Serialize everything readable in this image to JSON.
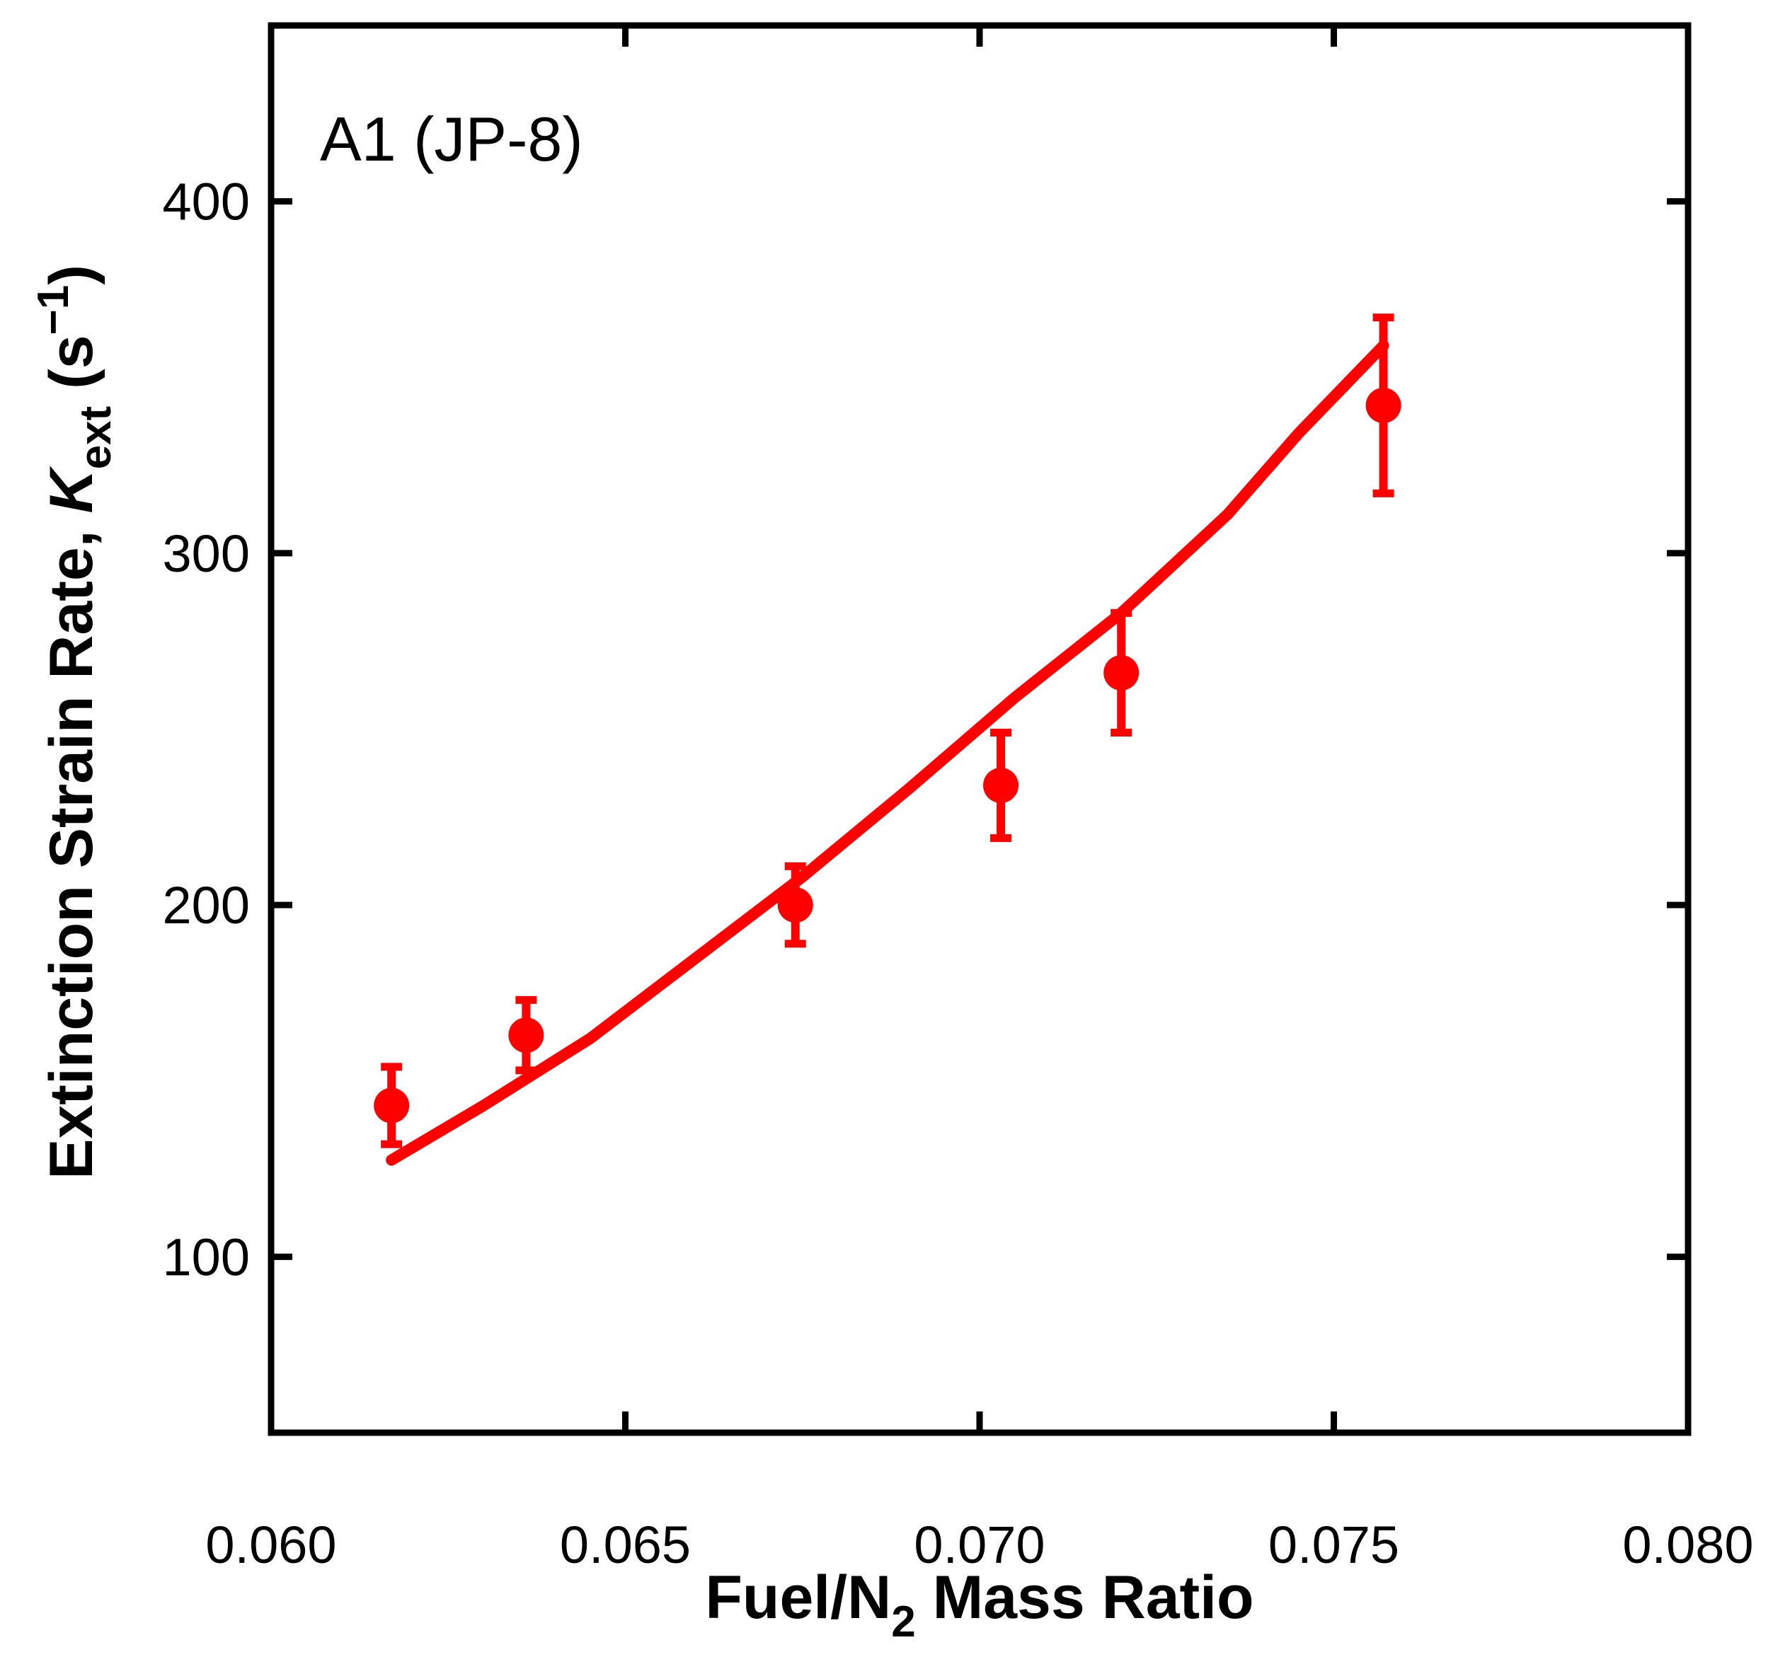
{
  "chart_data": {
    "type": "scatter",
    "annotation": "A1 (JP-8)",
    "xlabel_parts": {
      "prefix": "Fuel/N",
      "sub": "2",
      "suffix": " Mass Ratio"
    },
    "ylabel_parts": {
      "prefix": "Extinction Strain Rate, ",
      "symbol_italic": "K",
      "symbol_sub": "ext",
      "mid": " (s",
      "sup": "−1",
      "suffix": ")"
    },
    "xlim": [
      0.06,
      0.08
    ],
    "ylim": [
      50,
      450
    ],
    "xticks": [
      0.06,
      0.065,
      0.07,
      0.075,
      0.08
    ],
    "xticklabels": [
      "0.060",
      "0.065",
      "0.070",
      "0.075",
      "0.080"
    ],
    "yticks": [
      100,
      200,
      300,
      400
    ],
    "yticklabels": [
      "100",
      "200",
      "300",
      "400"
    ],
    "grid": false,
    "legend": null,
    "axis_color": "#000000",
    "background_color": "#ffffff",
    "series": [
      {
        "name": "experimental-data",
        "type": "scatter-errorbar",
        "color": "#ff0000",
        "marker": "circle",
        "points": [
          {
            "x": 0.0617,
            "y": 143,
            "err": 11
          },
          {
            "x": 0.0636,
            "y": 163,
            "err": 10
          },
          {
            "x": 0.0674,
            "y": 200,
            "err": 11
          },
          {
            "x": 0.0703,
            "y": 234,
            "err": 15
          },
          {
            "x": 0.072,
            "y": 266,
            "err": 17
          },
          {
            "x": 0.0757,
            "y": 342,
            "err": 25
          }
        ]
      },
      {
        "name": "model-fit-line",
        "type": "line",
        "color": "#ff0000",
        "points": [
          {
            "x": 0.0617,
            "y": 127.5
          },
          {
            "x": 0.063,
            "y": 143
          },
          {
            "x": 0.0645,
            "y": 162
          },
          {
            "x": 0.066,
            "y": 185
          },
          {
            "x": 0.0675,
            "y": 208
          },
          {
            "x": 0.069,
            "y": 233
          },
          {
            "x": 0.0705,
            "y": 259
          },
          {
            "x": 0.072,
            "y": 283
          },
          {
            "x": 0.0735,
            "y": 311
          },
          {
            "x": 0.0745,
            "y": 334
          },
          {
            "x": 0.0757,
            "y": 359
          }
        ]
      }
    ]
  }
}
